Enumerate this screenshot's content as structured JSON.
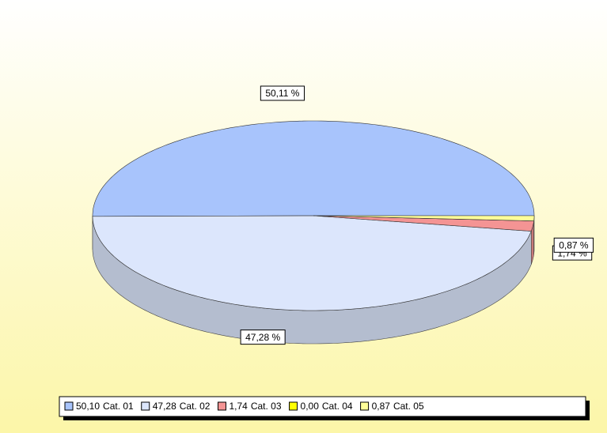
{
  "chart_data": {
    "type": "pie3d",
    "categories": [
      "Cat. 01",
      "Cat. 02",
      "Cat. 03",
      "Cat. 04",
      "Cat. 05"
    ],
    "values": [
      50.1,
      47.28,
      1.74,
      0.0,
      0.87
    ],
    "value_labels": [
      "50,10",
      "47,28",
      "1,74",
      "0,00",
      "0,87"
    ],
    "slice_labels": [
      "50,11 %",
      "47,28 %",
      "1,74 %",
      null,
      "0,87 %"
    ],
    "colors": [
      "#a8c4fc",
      "#dce6fc",
      "#f49494",
      "#ffff00",
      "#ffff99"
    ],
    "legend": "bottom"
  }
}
